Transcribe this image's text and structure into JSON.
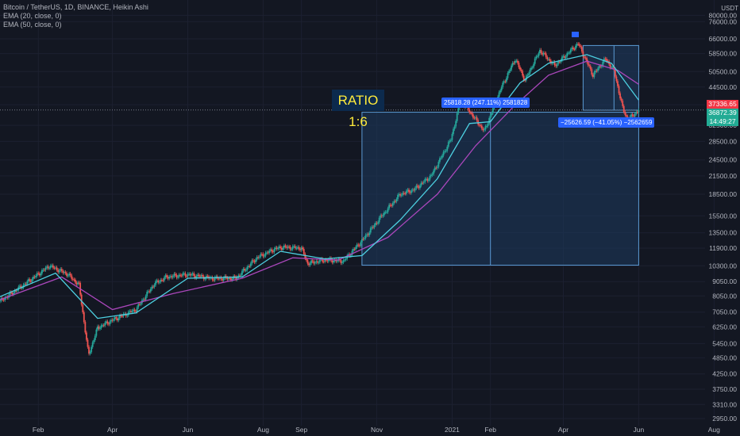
{
  "header": {
    "symbol_line": "Bitcoin / TetherUS, 1D, BINANCE, Heikin Ashi",
    "ema20_label": "EMA (20, close, 0)",
    "ema50_label": "EMA (50, close, 0)",
    "currency": "USDT"
  },
  "annotations": {
    "ratio_label": "RATIO 1:6",
    "long_box_label": "25818.28 (247.11%) 2581828",
    "short_box_label": "−25626.59 (−41.05%) −2562659",
    "price_red": "37336.65",
    "price_green": "36872.39",
    "countdown": "14:49:27"
  },
  "colors": {
    "background": "#131722",
    "up_candle": "#26a69a",
    "down_candle": "#ef5350",
    "ema20": "#4dd0e1",
    "ema50": "#ab47bc",
    "box_fill": "#1e3a5f",
    "box_line": "#5b9bd5",
    "label_blue": "#2962ff",
    "ratio_text": "#ffeb3b"
  },
  "chart_data": {
    "type": "candlestick",
    "y_scale": "log",
    "y_ticks": [
      80000,
      76000,
      66000,
      58500,
      50500,
      44500,
      38500,
      32500,
      28500,
      24500,
      21500,
      18500,
      15500,
      13500,
      11900,
      10300,
      9050,
      8050,
      7050,
      6250,
      5450,
      4850,
      4250,
      3750,
      3310,
      2950
    ],
    "y_tick_labels": [
      "80000.00",
      "76000.00",
      "66000.00",
      "58500.00",
      "50500.00",
      "44500.00",
      "38500.00",
      "32500.00",
      "28500.00",
      "24500.00",
      "21500.00",
      "18500.00",
      "15500.00",
      "13500.00",
      "11900.00",
      "10300.00",
      "9050.00",
      "8050.00",
      "7050.00",
      "6250.00",
      "5450.00",
      "4850.00",
      "4250.00",
      "3750.00",
      "3310.00",
      "2950.00"
    ],
    "x_tick_labels": [
      "Feb",
      "Apr",
      "Jun",
      "Aug",
      "Sep",
      "Nov",
      "2021",
      "Feb",
      "Apr",
      "Jun",
      "Aug"
    ],
    "x_tick_dates": [
      "2020-02-01",
      "2020-04-01",
      "2020-06-01",
      "2020-08-01",
      "2020-09-01",
      "2020-11-01",
      "2021-01-01",
      "2021-02-01",
      "2021-04-01",
      "2021-06-01",
      "2021-08-01"
    ],
    "x_range": [
      "2020-01-01",
      "2021-08-22"
    ],
    "close_series": {
      "dates": [
        "2020-01-01",
        "2020-01-20",
        "2020-02-10",
        "2020-02-25",
        "2020-03-05",
        "2020-03-12",
        "2020-03-13",
        "2020-03-20",
        "2020-04-01",
        "2020-04-20",
        "2020-05-05",
        "2020-05-15",
        "2020-06-01",
        "2020-06-20",
        "2020-07-10",
        "2020-07-27",
        "2020-08-10",
        "2020-08-17",
        "2020-09-01",
        "2020-09-06",
        "2020-09-20",
        "2020-10-05",
        "2020-10-21",
        "2020-11-05",
        "2020-11-20",
        "2020-12-01",
        "2020-12-15",
        "2020-12-31",
        "2021-01-08",
        "2021-01-15",
        "2021-01-27",
        "2021-02-10",
        "2021-02-21",
        "2021-03-01",
        "2021-03-13",
        "2021-03-25",
        "2021-04-13",
        "2021-04-25",
        "2021-05-05",
        "2021-05-12",
        "2021-05-19",
        "2021-05-23",
        "2021-05-28",
        "2021-06-01"
      ],
      "close": [
        7700,
        8800,
        10300,
        9600,
        8800,
        5200,
        5000,
        6200,
        6600,
        7200,
        8900,
        9400,
        9600,
        9300,
        9300,
        11000,
        11800,
        12000,
        11900,
        10500,
        10800,
        10700,
        12800,
        15500,
        18500,
        19200,
        21500,
        29000,
        40000,
        36500,
        31000,
        44500,
        56000,
        47000,
        60000,
        53000,
        63500,
        49000,
        56000,
        51000,
        37500,
        34000,
        35500,
        36872
      ]
    },
    "ema20_series": {
      "dates": [
        "2020-01-01",
        "2020-02-15",
        "2020-03-20",
        "2020-04-20",
        "2020-06-01",
        "2020-07-15",
        "2020-08-15",
        "2020-09-20",
        "2020-10-20",
        "2020-11-20",
        "2020-12-20",
        "2021-01-15",
        "2021-02-01",
        "2021-02-25",
        "2021-03-20",
        "2021-04-20",
        "2021-05-10",
        "2021-06-01"
      ],
      "values": [
        8000,
        9700,
        6700,
        7000,
        9300,
        9400,
        11600,
        10900,
        11200,
        15000,
        21000,
        33000,
        33500,
        46000,
        54000,
        58000,
        54000,
        40000
      ]
    },
    "ema50_series": {
      "dates": [
        "2020-01-01",
        "2020-02-20",
        "2020-04-01",
        "2020-05-20",
        "2020-07-15",
        "2020-08-25",
        "2020-10-01",
        "2020-11-10",
        "2020-12-20",
        "2021-01-20",
        "2021-02-20",
        "2021-03-20",
        "2021-04-20",
        "2021-05-15",
        "2021-06-01"
      ],
      "values": [
        7800,
        9400,
        7200,
        8200,
        9300,
        11000,
        10800,
        13000,
        18500,
        27500,
        38000,
        49000,
        55000,
        51000,
        45500
      ]
    },
    "position_long": {
      "entry": 10350,
      "stop": 10350,
      "target": 36200,
      "start_date": "2020-10-20",
      "end_date": "2021-06-01",
      "divider_date": "2021-02-01",
      "label": "25818.28 (247.11%) 2581828"
    },
    "position_short": {
      "entry": 62500,
      "target": 36800,
      "start_date": "2021-04-17",
      "end_date": "2021-06-01",
      "divider_date": "2021-05-12",
      "label": "−25626.59 (−41.05%) −2562659"
    },
    "last_price": 36872.39,
    "prev_price": 37336.65
  }
}
